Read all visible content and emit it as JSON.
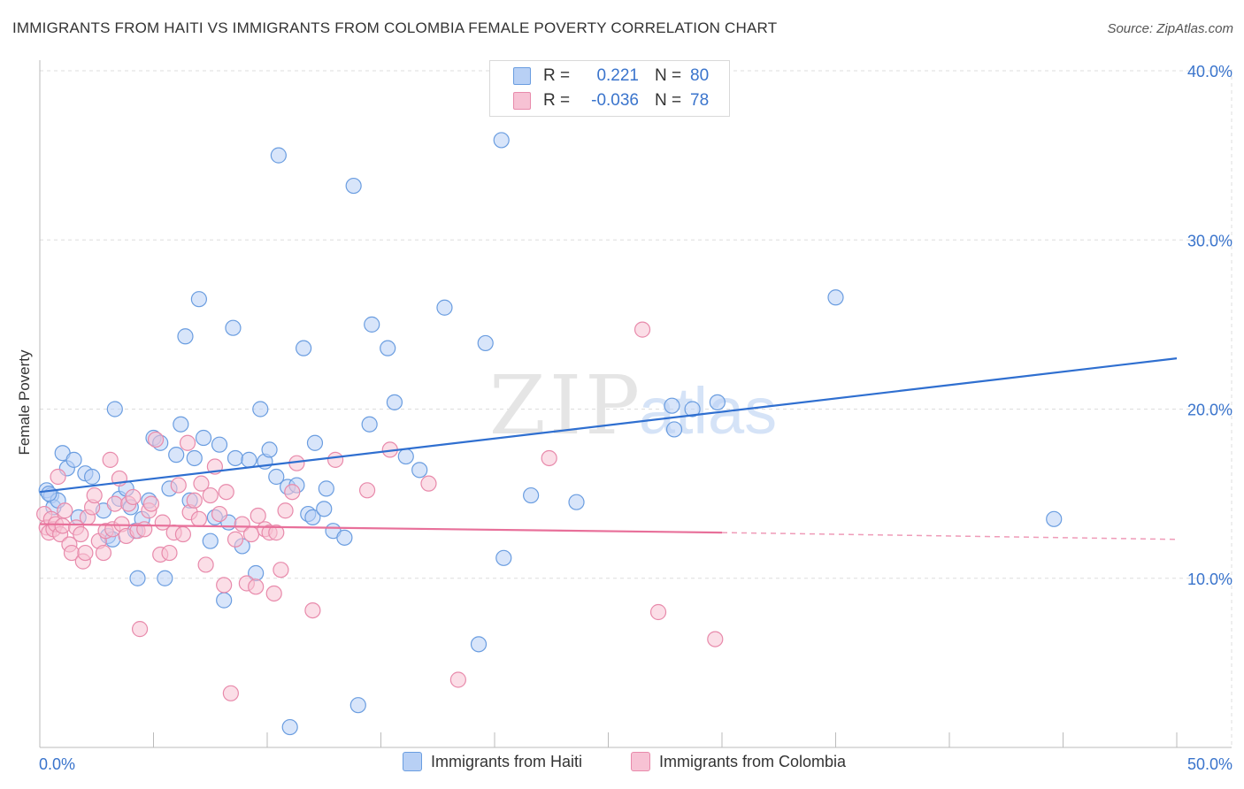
{
  "title": "IMMIGRANTS FROM HAITI VS IMMIGRANTS FROM COLOMBIA FEMALE POVERTY CORRELATION CHART",
  "source": "Source: ZipAtlas.com",
  "watermark": "ZIPatlas",
  "colors": {
    "blue_fill": "#b8d0f5",
    "blue_stroke": "#6a9de0",
    "blue_line": "#2f6fd0",
    "pink_fill": "#f7c2d4",
    "pink_stroke": "#e88aab",
    "pink_line": "#e8709a",
    "tick_text": "#3a74cc",
    "grid": "#dddddd"
  },
  "legend": {
    "rows": [
      {
        "r_label": "R =",
        "r_value": "0.221",
        "n_label": "N =",
        "n_value": "80"
      },
      {
        "r_label": "R =",
        "r_value": "-0.036",
        "n_label": "N =",
        "n_value": "78"
      }
    ]
  },
  "chart_data": {
    "type": "scatter",
    "title": "IMMIGRANTS FROM HAITI VS IMMIGRANTS FROM COLOMBIA FEMALE POVERTY CORRELATION CHART",
    "xlabel": "",
    "ylabel": "Female Poverty",
    "xlim": [
      0,
      50
    ],
    "ylim": [
      0,
      40
    ],
    "x_tick_labels": [
      "0.0%",
      "50.0%"
    ],
    "y_ticks": [
      10,
      20,
      30,
      40
    ],
    "y_tick_labels": [
      "10.0%",
      "20.0%",
      "30.0%",
      "40.0%"
    ],
    "grid": true,
    "legend_position": "top-center",
    "series": [
      {
        "name": "Immigrants from Haiti",
        "color": "#6a9de0",
        "trend": {
          "x": [
            0,
            50
          ],
          "y": [
            15.1,
            23.0
          ],
          "style": "solid"
        },
        "points": [
          [
            0.3,
            15.2
          ],
          [
            0.5,
            14.9
          ],
          [
            0.6,
            14.2
          ],
          [
            0.8,
            14.6
          ],
          [
            1.0,
            17.4
          ],
          [
            1.2,
            16.5
          ],
          [
            1.5,
            17.0
          ],
          [
            1.7,
            13.6
          ],
          [
            2.0,
            16.2
          ],
          [
            2.3,
            16.0
          ],
          [
            2.8,
            14.0
          ],
          [
            3.0,
            12.5
          ],
          [
            3.2,
            12.3
          ],
          [
            3.3,
            20.0
          ],
          [
            3.5,
            14.7
          ],
          [
            3.8,
            15.3
          ],
          [
            4.0,
            14.2
          ],
          [
            4.2,
            12.8
          ],
          [
            4.3,
            10.0
          ],
          [
            4.5,
            13.5
          ],
          [
            4.8,
            14.6
          ],
          [
            5.0,
            18.3
          ],
          [
            5.3,
            18.0
          ],
          [
            5.5,
            10.0
          ],
          [
            5.7,
            15.3
          ],
          [
            6.0,
            17.3
          ],
          [
            6.2,
            19.1
          ],
          [
            6.4,
            24.3
          ],
          [
            6.6,
            14.6
          ],
          [
            6.8,
            17.1
          ],
          [
            7.0,
            26.5
          ],
          [
            7.2,
            18.3
          ],
          [
            7.5,
            12.2
          ],
          [
            7.7,
            13.6
          ],
          [
            7.9,
            17.9
          ],
          [
            8.1,
            8.7
          ],
          [
            8.3,
            13.3
          ],
          [
            8.5,
            24.8
          ],
          [
            8.6,
            17.1
          ],
          [
            8.9,
            11.9
          ],
          [
            9.2,
            17.0
          ],
          [
            9.5,
            10.3
          ],
          [
            9.7,
            20.0
          ],
          [
            9.9,
            16.9
          ],
          [
            10.1,
            17.6
          ],
          [
            10.4,
            16.0
          ],
          [
            10.5,
            35.0
          ],
          [
            10.9,
            15.4
          ],
          [
            11.0,
            1.2
          ],
          [
            11.3,
            15.5
          ],
          [
            11.6,
            23.6
          ],
          [
            11.8,
            13.8
          ],
          [
            12.0,
            13.6
          ],
          [
            12.1,
            18.0
          ],
          [
            12.5,
            14.1
          ],
          [
            12.6,
            15.3
          ],
          [
            12.9,
            12.8
          ],
          [
            13.4,
            12.4
          ],
          [
            13.8,
            33.2
          ],
          [
            14.0,
            2.5
          ],
          [
            14.5,
            19.1
          ],
          [
            14.6,
            25.0
          ],
          [
            15.3,
            23.6
          ],
          [
            15.6,
            20.4
          ],
          [
            16.1,
            17.2
          ],
          [
            16.7,
            16.4
          ],
          [
            17.8,
            26.0
          ],
          [
            19.3,
            6.1
          ],
          [
            19.6,
            23.9
          ],
          [
            20.3,
            35.9
          ],
          [
            20.4,
            11.2
          ],
          [
            21.6,
            14.9
          ],
          [
            23.6,
            14.5
          ],
          [
            27.8,
            20.2
          ],
          [
            27.9,
            18.8
          ],
          [
            28.7,
            20.0
          ],
          [
            29.8,
            20.4
          ],
          [
            35.0,
            26.6
          ],
          [
            44.6,
            13.5
          ],
          [
            0.4,
            15.0
          ]
        ]
      },
      {
        "name": "Immigrants from Colombia",
        "color": "#e88aab",
        "trend": {
          "x": [
            0,
            30
          ],
          "y": [
            13.2,
            12.7
          ],
          "style": "solid",
          "dashed_to": [
            50,
            12.3
          ]
        },
        "points": [
          [
            0.2,
            13.8
          ],
          [
            0.3,
            13.0
          ],
          [
            0.4,
            12.7
          ],
          [
            0.5,
            13.5
          ],
          [
            0.6,
            12.9
          ],
          [
            0.7,
            13.2
          ],
          [
            0.8,
            16.0
          ],
          [
            0.9,
            12.6
          ],
          [
            1.0,
            13.1
          ],
          [
            1.1,
            14.0
          ],
          [
            1.3,
            12.0
          ],
          [
            1.4,
            11.5
          ],
          [
            1.6,
            13.0
          ],
          [
            1.8,
            12.6
          ],
          [
            1.9,
            11.0
          ],
          [
            2.0,
            11.5
          ],
          [
            2.1,
            13.6
          ],
          [
            2.3,
            14.2
          ],
          [
            2.4,
            14.9
          ],
          [
            2.6,
            12.2
          ],
          [
            2.8,
            11.5
          ],
          [
            2.9,
            12.8
          ],
          [
            3.1,
            17.0
          ],
          [
            3.2,
            12.9
          ],
          [
            3.3,
            14.4
          ],
          [
            3.5,
            15.9
          ],
          [
            3.6,
            13.2
          ],
          [
            3.8,
            12.5
          ],
          [
            3.9,
            14.4
          ],
          [
            4.1,
            14.8
          ],
          [
            4.3,
            12.8
          ],
          [
            4.4,
            7.0
          ],
          [
            4.6,
            12.9
          ],
          [
            4.8,
            14.0
          ],
          [
            4.9,
            14.4
          ],
          [
            5.1,
            18.2
          ],
          [
            5.3,
            11.4
          ],
          [
            5.4,
            13.3
          ],
          [
            5.7,
            11.5
          ],
          [
            5.9,
            12.7
          ],
          [
            6.1,
            15.5
          ],
          [
            6.3,
            12.6
          ],
          [
            6.5,
            18.0
          ],
          [
            6.6,
            13.9
          ],
          [
            6.8,
            14.6
          ],
          [
            7.0,
            13.5
          ],
          [
            7.1,
            15.6
          ],
          [
            7.3,
            10.8
          ],
          [
            7.5,
            14.9
          ],
          [
            7.7,
            16.6
          ],
          [
            7.9,
            13.8
          ],
          [
            8.1,
            9.6
          ],
          [
            8.2,
            15.1
          ],
          [
            8.4,
            3.2
          ],
          [
            8.6,
            12.3
          ],
          [
            8.9,
            13.2
          ],
          [
            9.1,
            9.7
          ],
          [
            9.3,
            12.6
          ],
          [
            9.5,
            9.5
          ],
          [
            9.6,
            13.7
          ],
          [
            9.9,
            12.9
          ],
          [
            10.1,
            12.7
          ],
          [
            10.3,
            9.1
          ],
          [
            10.6,
            10.5
          ],
          [
            10.8,
            14.0
          ],
          [
            11.1,
            15.1
          ],
          [
            11.3,
            16.8
          ],
          [
            12.0,
            8.1
          ],
          [
            13.0,
            17.0
          ],
          [
            14.4,
            15.2
          ],
          [
            15.4,
            17.6
          ],
          [
            17.1,
            15.6
          ],
          [
            18.4,
            4.0
          ],
          [
            22.4,
            17.1
          ],
          [
            26.5,
            24.7
          ],
          [
            27.2,
            8.0
          ],
          [
            29.7,
            6.4
          ],
          [
            10.4,
            12.7
          ]
        ]
      }
    ]
  }
}
